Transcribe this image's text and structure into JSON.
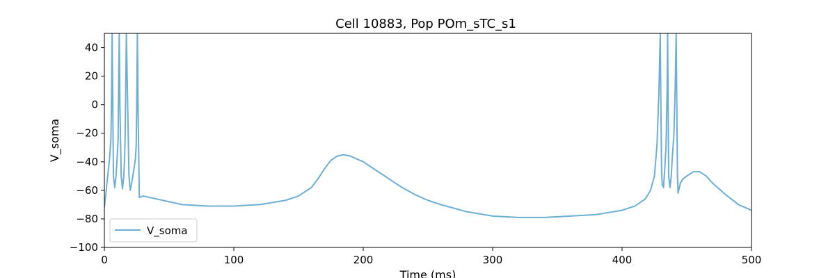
{
  "chart_data": {
    "type": "line",
    "title": "Cell 10883, Pop POm_sTC_s1",
    "xlabel": "Time (ms)",
    "ylabel": "V_soma",
    "xlim": [
      0,
      500
    ],
    "ylim": [
      -100,
      50
    ],
    "xticks": [
      0,
      100,
      200,
      300,
      400,
      500
    ],
    "yticks": [
      -100,
      -80,
      -60,
      -40,
      -20,
      0,
      20,
      40
    ],
    "grid": false,
    "legend_position": "lower-left",
    "series": [
      {
        "name": "V_soma",
        "color": "#6baed6",
        "x": [
          0,
          2,
          4,
          5,
          5.5,
          6,
          6.5,
          7,
          8,
          9,
          10,
          10.6,
          11,
          11.5,
          12,
          13,
          14,
          15,
          15.6,
          16,
          16.5,
          17,
          18,
          19,
          20,
          22,
          24,
          24.6,
          25,
          25.5,
          26,
          27,
          30,
          40,
          60,
          80,
          100,
          120,
          140,
          150,
          160,
          165,
          170,
          175,
          180,
          185,
          190,
          200,
          210,
          220,
          230,
          240,
          250,
          260,
          280,
          300,
          320,
          340,
          360,
          380,
          400,
          410,
          418,
          422,
          425,
          427,
          428.5,
          429.5,
          430,
          430.5,
          431,
          432,
          433,
          434,
          434.8,
          435.2,
          435.6,
          436,
          437,
          438,
          439,
          440,
          441,
          441.8,
          442.3,
          442.8,
          443.3,
          444,
          445,
          447,
          450,
          455,
          460,
          465,
          470,
          480,
          490,
          500
        ],
        "y": [
          -72,
          -55,
          -38,
          -25,
          0,
          50,
          0,
          -50,
          -58,
          -50,
          -35,
          -25,
          10,
          50,
          0,
          -50,
          -59,
          -50,
          -38,
          -25,
          10,
          50,
          0,
          -50,
          -60,
          -50,
          -38,
          -28,
          0,
          50,
          0,
          -65,
          -64,
          -66,
          -70,
          -71,
          -71,
          -70,
          -67,
          -64,
          -58,
          -52,
          -45,
          -39,
          -36,
          -35,
          -36,
          -40,
          -46,
          -52,
          -58,
          -63,
          -67,
          -70,
          -75,
          -78,
          -79,
          -79,
          -78,
          -77,
          -74,
          -71,
          -66,
          -60,
          -50,
          -28,
          10,
          50,
          0,
          -45,
          -56,
          -58,
          -45,
          -28,
          10,
          50,
          0,
          -50,
          -58,
          -50,
          -34,
          -22,
          10,
          50,
          0,
          -50,
          -62,
          -59,
          -55,
          -52,
          -50,
          -47,
          -47,
          -50,
          -55,
          -63,
          -70,
          -74
        ]
      }
    ]
  }
}
